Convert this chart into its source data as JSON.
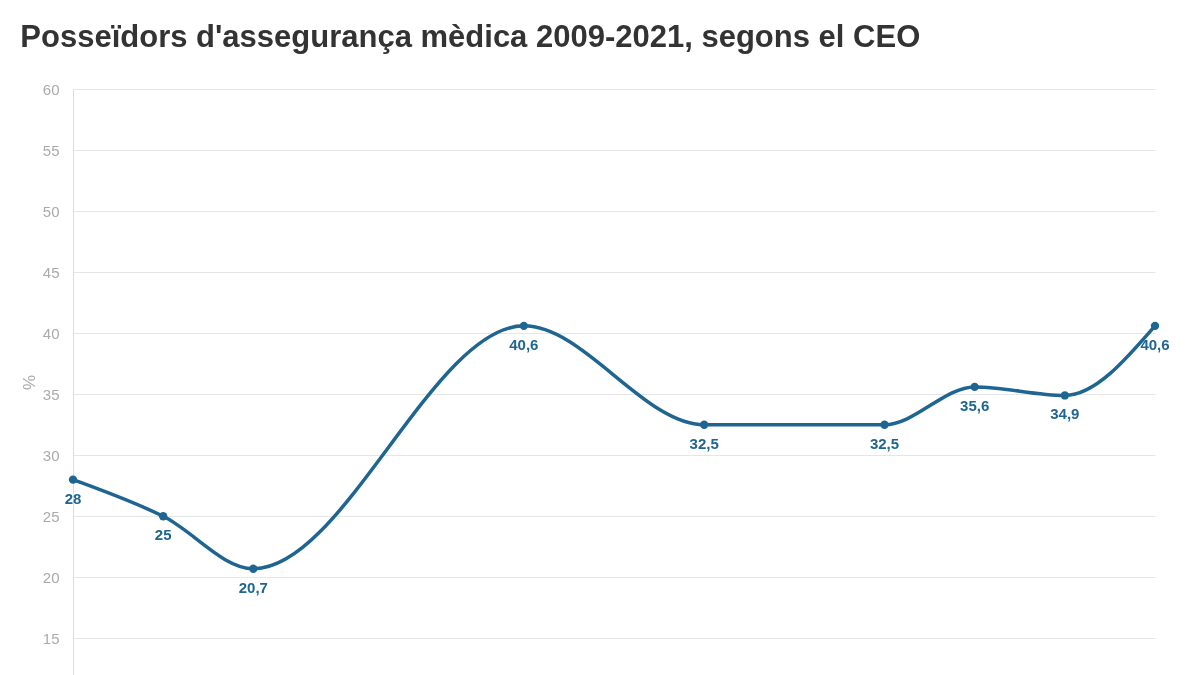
{
  "chart_data": {
    "type": "line",
    "title": "Posseïdors d'assegurança mèdica 2009-2021, segons el CEO",
    "ylabel": "%",
    "categories": [
      null,
      null,
      null,
      null,
      null,
      null,
      null,
      null,
      null,
      null,
      null,
      null,
      null
    ],
    "series": [
      {
        "color": "#1f6591",
        "values": [
          28,
          25,
          20.7,
          null,
          null,
          40.6,
          null,
          32.5,
          null,
          32.5,
          35.6,
          34.9,
          40.6
        ],
        "value_labels": [
          "28",
          "25",
          "20,7",
          null,
          null,
          "40,6",
          null,
          "32,5",
          null,
          "32,5",
          "35,6",
          "34,9",
          "40,6"
        ]
      }
    ],
    "ylim": [
      12,
      60
    ],
    "yticks": [
      15,
      20,
      25,
      30,
      35,
      40,
      45,
      50,
      55,
      60
    ],
    "grid": "y",
    "tick_labels": "y",
    "marker": "circle",
    "line_style": "solid"
  }
}
